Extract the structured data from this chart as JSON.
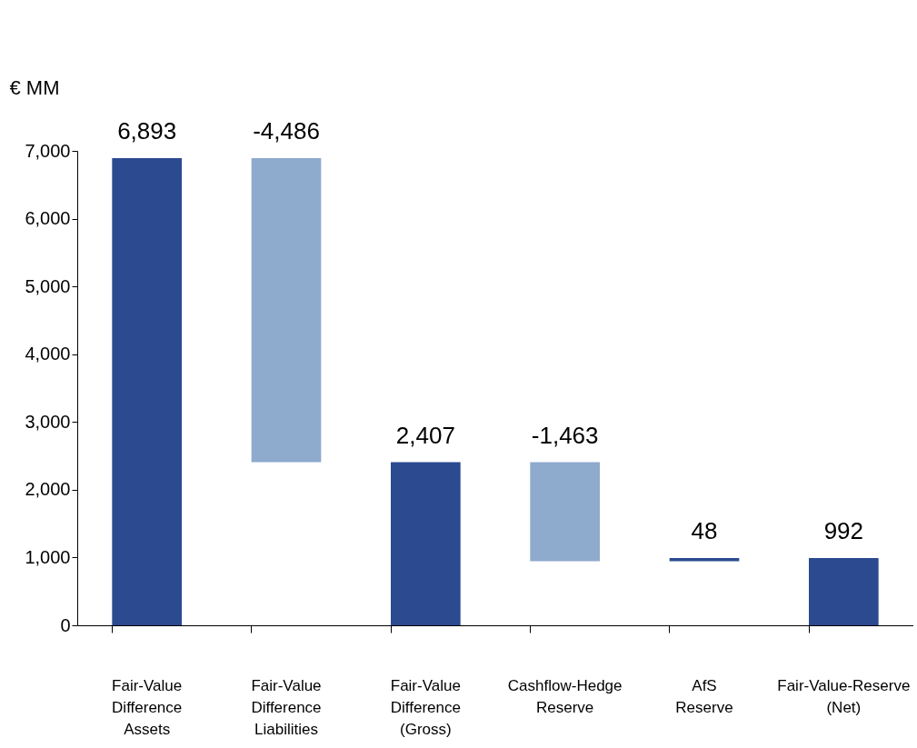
{
  "chart_data": {
    "type": "bar",
    "ylabel": "€ MM",
    "categories": [
      "Fair-Value Difference Assets",
      "Fair-Value Difference Liabilities",
      "Fair-Value Difference (Gross)",
      "Cashflow-Hedge Reserve",
      "AfS Reserve",
      "Fair-Value-Reserve (Net)"
    ],
    "values": [
      6893,
      -4486,
      2407,
      -1463,
      48,
      992
    ],
    "base": [
      0,
      6893,
      0,
      2407,
      944,
      0
    ],
    "colors": [
      "#2b4a8f",
      "#8eaacd",
      "#2b4a8f",
      "#8eaacd",
      "#2b4a8f",
      "#2b4a8f"
    ],
    "value_labels": [
      "6,893",
      "-4,486",
      "2,407",
      "-1,463",
      "48",
      "992"
    ],
    "ylim": [
      0,
      7000
    ],
    "yticks": [
      0,
      {
        "value": 1000,
        "label": "1,000"
      },
      {
        "value": 2000,
        "label": "2,000"
      },
      {
        "value": 3000,
        "label": "3,000"
      },
      {
        "value": 4000,
        "label": "4,000"
      },
      {
        "value": 5000,
        "label": "5,000"
      },
      {
        "value": 6000,
        "label": "6,000"
      },
      {
        "value": 7000,
        "label": "7,000"
      }
    ],
    "grid": false,
    "legend": false
  }
}
